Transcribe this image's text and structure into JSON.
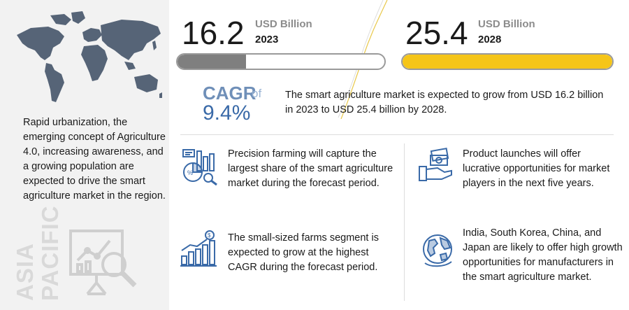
{
  "region": {
    "description": "Rapid urbanization, the emerging concept of Agriculture 4.0, increasing awareness, and a growing population are expected to drive the smart agriculture market in the region.",
    "label_line1": "ASIA",
    "label_line2": "PACIFIC"
  },
  "stats": [
    {
      "value": "16.2",
      "unit": "USD Billion",
      "year": "2023",
      "fill_fraction": 0.33,
      "fill_color": "#7f7f7f"
    },
    {
      "value": "25.4",
      "unit": "USD Billion",
      "year": "2028",
      "fill_fraction": 1.0,
      "fill_color": "#f5c518"
    }
  ],
  "cagr": {
    "label": "CAGR",
    "of": "of",
    "value": "9.4%",
    "text": "The smart agriculture market is expected to grow from USD 16.2 billion in 2023 to USD 25.4 billion by 2028."
  },
  "insights": [
    {
      "icon": "precision-farming-icon",
      "text": "Precision farming will capture the largest share of the smart agriculture market during the forecast period."
    },
    {
      "icon": "product-launch-icon",
      "text": "Product launches will offer lucrative opportunities for market players in the next five years."
    },
    {
      "icon": "growth-chart-icon",
      "text": "The small-sized farms segment is expected to grow at the highest CAGR during the forecast period."
    },
    {
      "icon": "globe-icon",
      "text": "India, South Korea, China, and Japan are likely to offer high growth opportunities for manufacturers in the smart agriculture market."
    }
  ],
  "colors": {
    "accent_yellow": "#f5c518",
    "accent_blue": "#3a6aa8",
    "map": "#566477",
    "panel_bg": "#f2f2f2"
  }
}
